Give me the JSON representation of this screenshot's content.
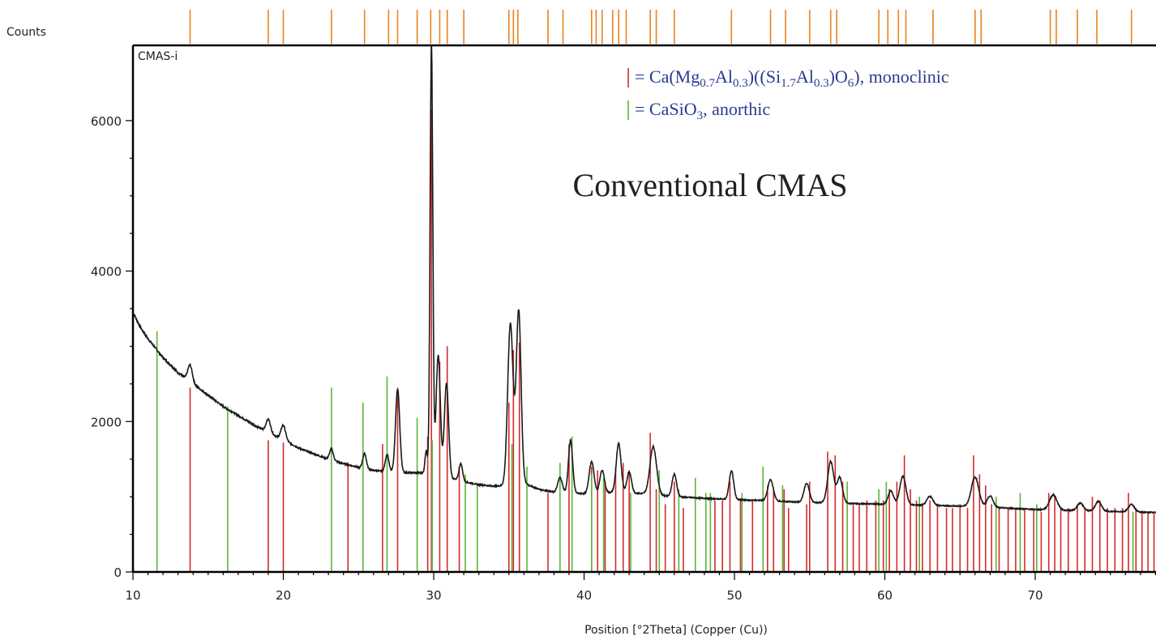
{
  "chart_data": {
    "type": "line",
    "sample_label": "CMAS-i",
    "annotation": "Conventional CMAS",
    "xlabel": "Position [°2Theta] (Copper (Cu))",
    "ylabel": "Counts",
    "xlim": [
      10,
      80
    ],
    "ylim": [
      0,
      7000
    ],
    "x_ticks": [
      "10",
      "20",
      "30",
      "40",
      "50",
      "60",
      "70"
    ],
    "y_ticks": [
      "0",
      "2000",
      "4000",
      "6000"
    ],
    "grid": false,
    "legend_position": "top-right",
    "colors": {
      "pattern": "#1a1a1a",
      "monoclinic": "#d42a2a",
      "anorthic": "#5ab53a",
      "top_markers": "#e8821e",
      "legend_text": "#2b3990"
    },
    "legend": [
      {
        "color": "#d42a2a",
        "parts": [
          {
            "t": "= Ca(Mg"
          },
          {
            "t": "0.7",
            "sub": true
          },
          {
            "t": "Al"
          },
          {
            "t": "0.3",
            "sub": true
          },
          {
            "t": ")((Si"
          },
          {
            "t": "1.7",
            "sub": true
          },
          {
            "t": "Al"
          },
          {
            "t": "0.3",
            "sub": true
          },
          {
            "t": ")O"
          },
          {
            "t": "6",
            "sub": true
          },
          {
            "t": "), monoclinic"
          }
        ]
      },
      {
        "color": "#5ab53a",
        "parts": [
          {
            "t": "= CaSiO"
          },
          {
            "t": "3",
            "sub": true
          },
          {
            "t": ", anorthic"
          }
        ]
      }
    ],
    "pattern_anchors": [
      [
        10.0,
        3450
      ],
      [
        10.5,
        3250
      ],
      [
        11.0,
        3100
      ],
      [
        12.0,
        2850
      ],
      [
        13.0,
        2650
      ],
      [
        14.0,
        2500
      ],
      [
        15.0,
        2350
      ],
      [
        16.0,
        2200
      ],
      [
        17.0,
        2080
      ],
      [
        18.0,
        1960
      ],
      [
        19.0,
        1850
      ],
      [
        20.0,
        1760
      ],
      [
        21.0,
        1650
      ],
      [
        22.0,
        1570
      ],
      [
        23.0,
        1500
      ],
      [
        24.0,
        1440
      ],
      [
        25.0,
        1390
      ],
      [
        26.0,
        1350
      ],
      [
        27.0,
        1330
      ],
      [
        28.0,
        1320
      ],
      [
        29.0,
        1320
      ],
      [
        30.0,
        1300
      ],
      [
        31.0,
        1250
      ],
      [
        32.0,
        1200
      ],
      [
        33.0,
        1160
      ],
      [
        34.0,
        1140
      ],
      [
        35.0,
        1150
      ],
      [
        36.0,
        1180
      ],
      [
        37.0,
        1100
      ],
      [
        38.0,
        1060
      ],
      [
        39.0,
        1050
      ],
      [
        40.0,
        1040
      ],
      [
        42.0,
        1060
      ],
      [
        44.0,
        1040
      ],
      [
        46.0,
        1000
      ],
      [
        48.0,
        980
      ],
      [
        50.0,
        960
      ],
      [
        52.0,
        950
      ],
      [
        54.0,
        930
      ],
      [
        56.0,
        920
      ],
      [
        58.0,
        910
      ],
      [
        60.0,
        900
      ],
      [
        62.0,
        890
      ],
      [
        64.0,
        880
      ],
      [
        66.0,
        870
      ],
      [
        68.0,
        850
      ],
      [
        70.0,
        830
      ],
      [
        72.0,
        820
      ],
      [
        74.0,
        810
      ],
      [
        76.0,
        800
      ],
      [
        78.0,
        790
      ],
      [
        80.0,
        780
      ]
    ],
    "pattern_peaks": [
      {
        "x": 13.8,
        "h": 220,
        "w": 0.15
      },
      {
        "x": 19.0,
        "h": 180,
        "w": 0.15
      },
      {
        "x": 20.0,
        "h": 190,
        "w": 0.15
      },
      {
        "x": 23.2,
        "h": 150,
        "w": 0.12
      },
      {
        "x": 25.4,
        "h": 200,
        "w": 0.12
      },
      {
        "x": 26.9,
        "h": 230,
        "w": 0.12
      },
      {
        "x": 27.6,
        "h": 1100,
        "w": 0.14
      },
      {
        "x": 29.5,
        "h": 300,
        "w": 0.08
      },
      {
        "x": 29.85,
        "h": 5700,
        "w": 0.09
      },
      {
        "x": 30.3,
        "h": 1600,
        "w": 0.14
      },
      {
        "x": 30.85,
        "h": 1250,
        "w": 0.14
      },
      {
        "x": 31.8,
        "h": 230,
        "w": 0.12
      },
      {
        "x": 35.1,
        "h": 2150,
        "w": 0.18
      },
      {
        "x": 35.65,
        "h": 2300,
        "w": 0.16
      },
      {
        "x": 38.4,
        "h": 200,
        "w": 0.15
      },
      {
        "x": 39.1,
        "h": 700,
        "w": 0.14
      },
      {
        "x": 40.5,
        "h": 420,
        "w": 0.16
      },
      {
        "x": 41.2,
        "h": 300,
        "w": 0.15
      },
      {
        "x": 42.3,
        "h": 650,
        "w": 0.16
      },
      {
        "x": 43.0,
        "h": 280,
        "w": 0.15
      },
      {
        "x": 44.6,
        "h": 640,
        "w": 0.22
      },
      {
        "x": 46.0,
        "h": 300,
        "w": 0.15
      },
      {
        "x": 49.8,
        "h": 380,
        "w": 0.15
      },
      {
        "x": 52.4,
        "h": 280,
        "w": 0.18
      },
      {
        "x": 54.8,
        "h": 250,
        "w": 0.18
      },
      {
        "x": 56.4,
        "h": 550,
        "w": 0.2
      },
      {
        "x": 57.0,
        "h": 340,
        "w": 0.18
      },
      {
        "x": 60.4,
        "h": 180,
        "w": 0.18
      },
      {
        "x": 61.2,
        "h": 380,
        "w": 0.2
      },
      {
        "x": 63.0,
        "h": 120,
        "w": 0.2
      },
      {
        "x": 66.0,
        "h": 390,
        "w": 0.25
      },
      {
        "x": 67.0,
        "h": 150,
        "w": 0.2
      },
      {
        "x": 71.2,
        "h": 200,
        "w": 0.25
      },
      {
        "x": 73.0,
        "h": 100,
        "w": 0.2
      },
      {
        "x": 74.2,
        "h": 130,
        "w": 0.2
      },
      {
        "x": 76.4,
        "h": 100,
        "w": 0.2
      }
    ],
    "monoclinic_lines": [
      [
        13.8,
        2450
      ],
      [
        19.0,
        1750
      ],
      [
        20.0,
        1720
      ],
      [
        24.3,
        1450
      ],
      [
        26.6,
        1700
      ],
      [
        27.6,
        2450
      ],
      [
        29.6,
        1800
      ],
      [
        29.85,
        6150
      ],
      [
        30.4,
        2800
      ],
      [
        30.9,
        3000
      ],
      [
        31.7,
        1400
      ],
      [
        35.0,
        2250
      ],
      [
        35.3,
        2950
      ],
      [
        35.7,
        3050
      ],
      [
        37.6,
        1050
      ],
      [
        39.0,
        1700
      ],
      [
        40.5,
        1400
      ],
      [
        40.9,
        1350
      ],
      [
        41.4,
        1200
      ],
      [
        42.1,
        1400
      ],
      [
        42.6,
        1450
      ],
      [
        43.0,
        1350
      ],
      [
        44.4,
        1850
      ],
      [
        44.8,
        1100
      ],
      [
        45.4,
        900
      ],
      [
        46.0,
        1200
      ],
      [
        46.6,
        850
      ],
      [
        48.7,
        950
      ],
      [
        49.2,
        950
      ],
      [
        49.7,
        1200
      ],
      [
        50.4,
        950
      ],
      [
        51.2,
        950
      ],
      [
        52.2,
        1150
      ],
      [
        52.6,
        1100
      ],
      [
        53.3,
        1100
      ],
      [
        53.6,
        850
      ],
      [
        54.8,
        900
      ],
      [
        55.0,
        1200
      ],
      [
        56.2,
        1600
      ],
      [
        56.7,
        1550
      ],
      [
        57.2,
        1200
      ],
      [
        57.9,
        900
      ],
      [
        58.3,
        900
      ],
      [
        58.8,
        950
      ],
      [
        59.4,
        950
      ],
      [
        59.9,
        950
      ],
      [
        60.3,
        1100
      ],
      [
        60.8,
        1200
      ],
      [
        61.3,
        1550
      ],
      [
        61.7,
        1100
      ],
      [
        62.1,
        950
      ],
      [
        62.5,
        900
      ],
      [
        63.0,
        950
      ],
      [
        63.5,
        900
      ],
      [
        64.1,
        850
      ],
      [
        64.5,
        850
      ],
      [
        65.0,
        900
      ],
      [
        65.5,
        850
      ],
      [
        65.9,
        1550
      ],
      [
        66.3,
        1300
      ],
      [
        66.7,
        1150
      ],
      [
        67.1,
        900
      ],
      [
        67.6,
        850
      ],
      [
        68.2,
        850
      ],
      [
        68.7,
        850
      ],
      [
        69.3,
        850
      ],
      [
        69.9,
        850
      ],
      [
        70.4,
        800
      ],
      [
        70.9,
        1050
      ],
      [
        71.3,
        1000
      ],
      [
        71.7,
        850
      ],
      [
        72.2,
        850
      ],
      [
        72.8,
        900
      ],
      [
        73.3,
        850
      ],
      [
        73.8,
        1000
      ],
      [
        74.3,
        950
      ],
      [
        74.8,
        850
      ],
      [
        75.3,
        850
      ],
      [
        75.8,
        850
      ],
      [
        76.2,
        1050
      ],
      [
        76.7,
        850
      ],
      [
        77.1,
        800
      ],
      [
        77.5,
        800
      ],
      [
        77.9,
        800
      ],
      [
        78.3,
        800
      ],
      [
        78.7,
        800
      ],
      [
        79.1,
        800
      ],
      [
        79.5,
        800
      ]
    ],
    "anorthic_lines": [
      [
        11.6,
        3200
      ],
      [
        16.3,
        2200
      ],
      [
        23.2,
        2450
      ],
      [
        25.3,
        2250
      ],
      [
        26.9,
        2600
      ],
      [
        28.9,
        2050
      ],
      [
        29.9,
        1750
      ],
      [
        32.1,
        1300
      ],
      [
        32.9,
        1150
      ],
      [
        35.2,
        1700
      ],
      [
        36.2,
        1400
      ],
      [
        38.4,
        1450
      ],
      [
        39.2,
        1800
      ],
      [
        40.5,
        1300
      ],
      [
        41.3,
        1250
      ],
      [
        43.1,
        1050
      ],
      [
        45.0,
        1350
      ],
      [
        46.3,
        1100
      ],
      [
        47.4,
        1250
      ],
      [
        48.1,
        1050
      ],
      [
        48.4,
        1050
      ],
      [
        50.5,
        1050
      ],
      [
        51.9,
        1400
      ],
      [
        53.2,
        1150
      ],
      [
        57.5,
        1200
      ],
      [
        59.6,
        1100
      ],
      [
        60.1,
        1200
      ],
      [
        62.3,
        1000
      ],
      [
        67.4,
        1000
      ],
      [
        69.0,
        1050
      ],
      [
        70.1,
        900
      ],
      [
        76.5,
        800
      ]
    ],
    "top_markers": [
      13.8,
      19.0,
      20.0,
      23.2,
      25.4,
      27.0,
      27.6,
      28.9,
      29.8,
      30.4,
      30.9,
      32.0,
      35.0,
      35.3,
      35.6,
      37.6,
      38.6,
      40.5,
      40.8,
      41.2,
      41.9,
      42.3,
      42.8,
      44.4,
      44.8,
      46.0,
      49.8,
      52.4,
      53.4,
      55.0,
      56.4,
      56.8,
      59.6,
      60.2,
      60.9,
      61.4,
      63.2,
      66.0,
      66.4,
      71.0,
      71.4,
      72.8,
      74.1,
      76.4
    ]
  }
}
